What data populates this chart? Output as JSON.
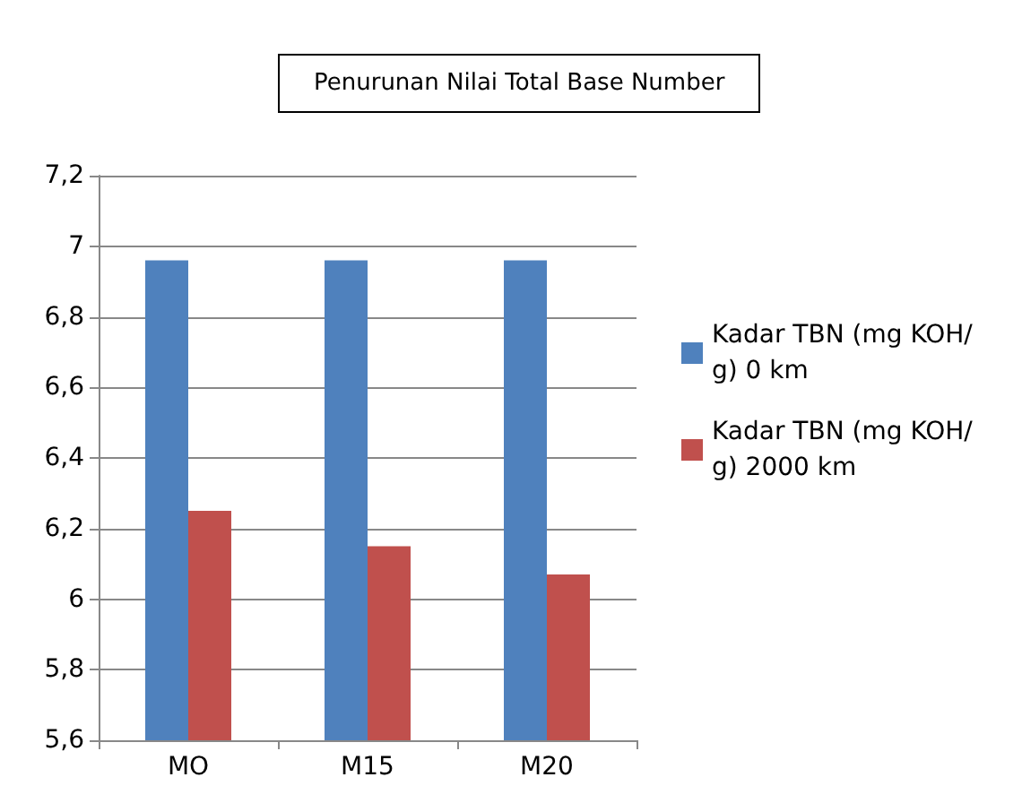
{
  "chart_data": {
    "type": "bar",
    "title": "Penurunan Nilai Total Base Number",
    "categories": [
      "MO",
      "M15",
      "M20"
    ],
    "series": [
      {
        "name": "Kadar TBN (mg KOH/g) 0 km",
        "color": "#4f81bd",
        "values": [
          6.96,
          6.96,
          6.96
        ]
      },
      {
        "name": "Kadar TBN (mg KOH/g) 2000 km",
        "color": "#c0504d",
        "values": [
          6.25,
          6.15,
          6.07
        ]
      }
    ],
    "ylim": [
      5.6,
      7.2
    ],
    "yticks": [
      {
        "value": 5.6,
        "label": "5,6"
      },
      {
        "value": 5.8,
        "label": "5,8"
      },
      6,
      {
        "value": 6.2,
        "label": "6,2"
      },
      {
        "value": 6.4,
        "label": "6,4"
      },
      {
        "value": 6.6,
        "label": "6,6"
      },
      {
        "value": 6.8,
        "label": "6,8"
      },
      7,
      {
        "value": 7.2,
        "label": "7,2"
      }
    ],
    "grid": "y",
    "legend": "right"
  }
}
